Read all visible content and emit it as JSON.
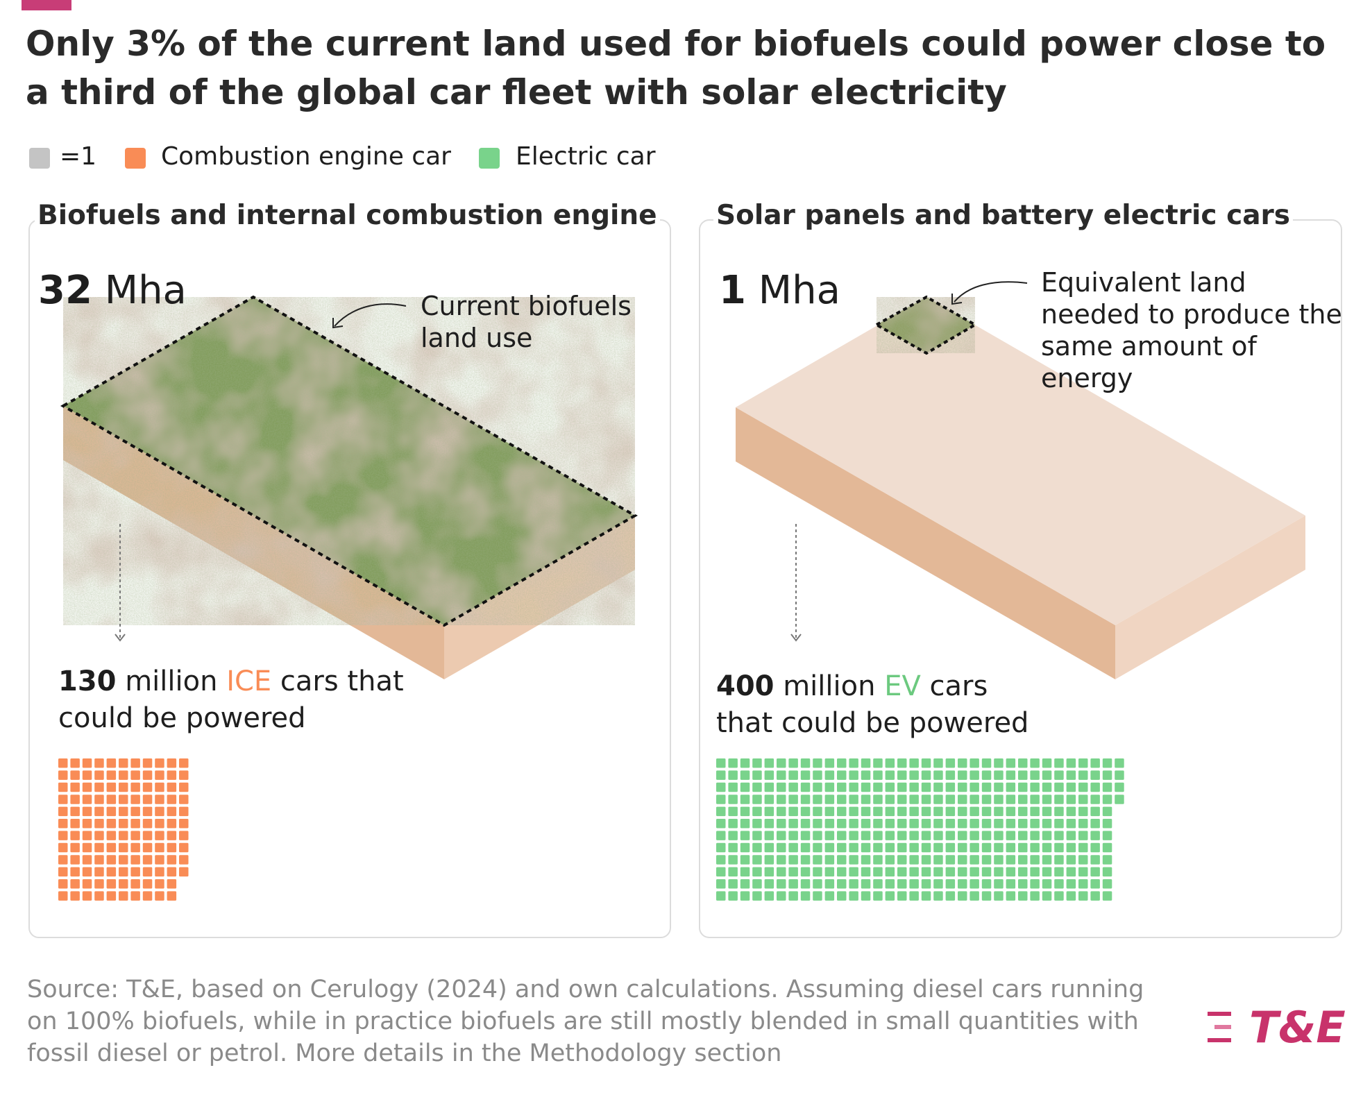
{
  "title": "Only 3% of the current land used for biofuels could power close to a third of the global car fleet with solar electricity",
  "legend": [
    {
      "label": "=1",
      "color": "#c4c4c4"
    },
    {
      "label": "Combustion engine car",
      "color": "#f98c56"
    },
    {
      "label": "Electric car",
      "color": "#79d38b"
    }
  ],
  "panels": [
    {
      "title": "Biofuels and internal combustion engine",
      "area": 32,
      "area_unit": "Mha",
      "annotation": "Current biofuels land use",
      "count": 130,
      "count_unit": "million",
      "car_type": "ICE",
      "caption_rest": "cars that could be powered",
      "color": "#f98c56"
    },
    {
      "title": "Solar panels and battery electric cars",
      "area": 1,
      "area_unit": "Mha",
      "annotation": "Equivalent land needed to produce the same amount of energy",
      "count": 400,
      "count_unit": "million",
      "car_type": "EV",
      "caption_rest": "cars that could be powered",
      "color": "#79d38b"
    }
  ],
  "source": "Source: T&E, based on Cerulogy (2024) and own calculations. Assuming diesel cars running on 100% biofuels, while in practice biofuels are still mostly blended in small quantities with fossil diesel or petrol. More details in the Methodology section",
  "logo": "T&E"
}
